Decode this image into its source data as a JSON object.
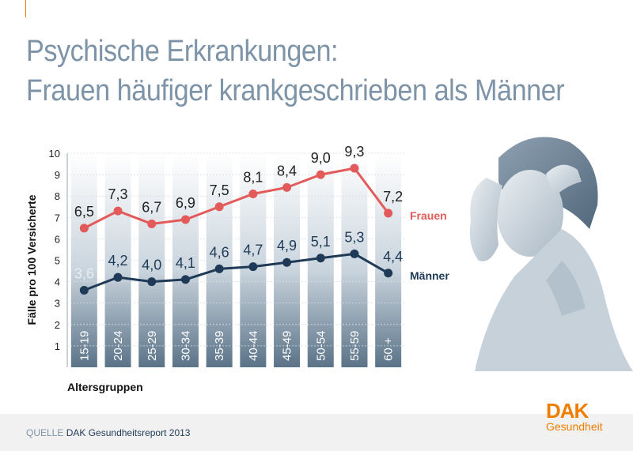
{
  "title": {
    "line1": "Psychische Erkrankungen:",
    "line2": "Frauen häufiger krankgeschrieben als Männer"
  },
  "source": {
    "label": "QUELLE",
    "text": "DAK Gesundheitsreport 2013"
  },
  "logo": {
    "brand": "DAK",
    "sub": "Gesundheit"
  },
  "photo": {
    "icon": "woman-with-headache-illustration"
  },
  "colors": {
    "frauen": "#e35a5a",
    "maenner": "#1f3a57",
    "title": "#7d93a8",
    "accent": "#ef7d00",
    "bar_top": "#ffffff",
    "bar_bottom": "#5b7388"
  },
  "chart_data": {
    "type": "line",
    "xlabel": "Altersgruppen",
    "ylabel": "Fälle pro 100 Versicherte",
    "ylim": [
      0,
      10
    ],
    "yticks": [
      1,
      2,
      3,
      4,
      5,
      6,
      7,
      8,
      9,
      10
    ],
    "grid": true,
    "categories": [
      "15-19",
      "20-24",
      "25-29",
      "30-34",
      "35-39",
      "40-44",
      "45-49",
      "50-54",
      "55-59",
      "60 +"
    ],
    "series": [
      {
        "name": "Frauen",
        "values": [
          6.5,
          7.3,
          6.7,
          6.9,
          7.5,
          8.1,
          8.4,
          9.0,
          9.3,
          7.2
        ],
        "labels": [
          "6,5",
          "7,3",
          "6,7",
          "6,9",
          "7,5",
          "8,1",
          "8,4",
          "9,0",
          "9,3",
          "7,2"
        ]
      },
      {
        "name": "Männer",
        "values": [
          3.6,
          4.2,
          4.0,
          4.1,
          4.6,
          4.7,
          4.9,
          5.1,
          5.3,
          4.4
        ],
        "labels": [
          "3,6",
          "4,2",
          "4,0",
          "4,1",
          "4,6",
          "4,7",
          "4,9",
          "5,1",
          "5,3",
          "4,4"
        ]
      }
    ]
  }
}
